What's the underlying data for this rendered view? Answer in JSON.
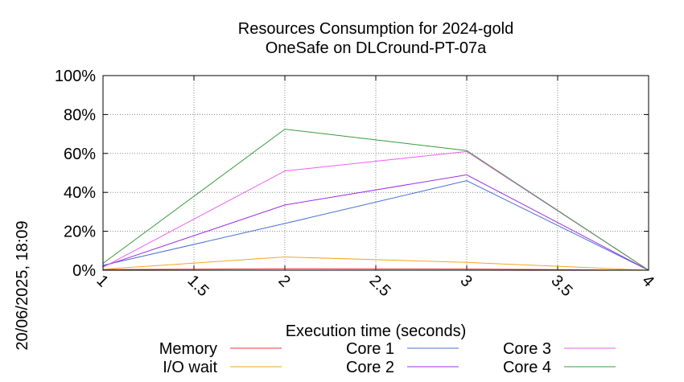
{
  "chart_data": {
    "type": "line",
    "title": "Resources Consumption for 2024-gold",
    "subtitle": "OneSafe on DLCround-PT-07a",
    "xlabel": "Execution time (seconds)",
    "ylabel": "",
    "side_stamp": "20/06/2025, 18:09",
    "xlim": [
      1,
      4
    ],
    "ylim": [
      0,
      100
    ],
    "x_ticks": [
      1,
      1.5,
      2,
      2.5,
      3,
      3.5,
      4
    ],
    "x_tick_labels": [
      "1",
      "1.5",
      "2",
      "2.5",
      "3",
      "3.5",
      "4"
    ],
    "y_ticks": [
      0,
      20,
      40,
      60,
      80,
      100
    ],
    "y_tick_labels": [
      "0%",
      "20%",
      "40%",
      "60%",
      "80%",
      "100%"
    ],
    "grid": true,
    "legend_position": "bottom",
    "x": [
      1,
      2,
      3,
      4
    ],
    "series": [
      {
        "name": "Memory",
        "color": "#e8393a",
        "values": [
          0.3,
          0.8,
          0.6,
          0
        ]
      },
      {
        "name": "I/O wait",
        "color": "#f5a623",
        "values": [
          0.5,
          6.8,
          4.0,
          0
        ]
      },
      {
        "name": "Core 1",
        "color": "#4a6fd4",
        "values": [
          2.5,
          24,
          46,
          0
        ]
      },
      {
        "name": "Core 2",
        "color": "#9b30e0",
        "values": [
          2,
          33.5,
          49,
          0
        ]
      },
      {
        "name": "Core 3",
        "color": "#ef5ef0",
        "values": [
          1.5,
          51,
          61,
          0
        ]
      },
      {
        "name": "Core 4",
        "color": "#3a9a3a",
        "values": [
          3.5,
          72.5,
          61.5,
          0
        ]
      }
    ]
  }
}
